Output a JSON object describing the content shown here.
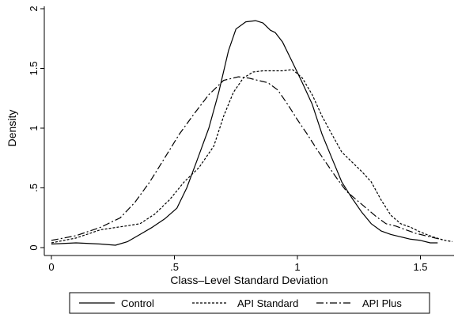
{
  "chart_data": {
    "type": "line",
    "title": "",
    "xlabel": "Class–Level Standard Deviation",
    "ylabel": "Density",
    "xlim": [
      0,
      1.65
    ],
    "ylim": [
      0,
      2.05
    ],
    "grid": false,
    "legend_position": "bottom",
    "x_ticks": [
      {
        "value": 0,
        "label": "0"
      },
      {
        "value": 0.5,
        "label": ".5"
      },
      {
        "value": 1,
        "label": "1"
      },
      {
        "value": 1.5,
        "label": "1.5"
      }
    ],
    "y_ticks": [
      {
        "value": 0,
        "label": "0"
      },
      {
        "value": 0.5,
        "label": ".5"
      },
      {
        "value": 1,
        "label": "1"
      },
      {
        "value": 1.5,
        "label": "1.5"
      },
      {
        "value": 2,
        "label": "2"
      }
    ],
    "series": [
      {
        "name": "Control",
        "style": "solid",
        "points": [
          [
            0.0,
            0.03
          ],
          [
            0.1,
            0.04
          ],
          [
            0.2,
            0.03
          ],
          [
            0.26,
            0.02
          ],
          [
            0.31,
            0.05
          ],
          [
            0.36,
            0.11
          ],
          [
            0.41,
            0.17
          ],
          [
            0.46,
            0.24
          ],
          [
            0.51,
            0.33
          ],
          [
            0.55,
            0.5
          ],
          [
            0.59,
            0.72
          ],
          [
            0.64,
            1.0
          ],
          [
            0.68,
            1.3
          ],
          [
            0.72,
            1.65
          ],
          [
            0.75,
            1.83
          ],
          [
            0.79,
            1.89
          ],
          [
            0.83,
            1.9
          ],
          [
            0.86,
            1.88
          ],
          [
            0.89,
            1.82
          ],
          [
            0.91,
            1.8
          ],
          [
            0.94,
            1.72
          ],
          [
            0.98,
            1.55
          ],
          [
            1.02,
            1.38
          ],
          [
            1.06,
            1.2
          ],
          [
            1.1,
            0.95
          ],
          [
            1.14,
            0.75
          ],
          [
            1.18,
            0.55
          ],
          [
            1.22,
            0.42
          ],
          [
            1.26,
            0.3
          ],
          [
            1.3,
            0.2
          ],
          [
            1.34,
            0.14
          ],
          [
            1.38,
            0.11
          ],
          [
            1.42,
            0.09
          ],
          [
            1.46,
            0.07
          ],
          [
            1.5,
            0.06
          ],
          [
            1.54,
            0.04
          ],
          [
            1.57,
            0.04
          ]
        ]
      },
      {
        "name": "API Standard",
        "style": "dashed",
        "points": [
          [
            0.0,
            0.04
          ],
          [
            0.1,
            0.08
          ],
          [
            0.2,
            0.15
          ],
          [
            0.3,
            0.18
          ],
          [
            0.36,
            0.2
          ],
          [
            0.42,
            0.28
          ],
          [
            0.48,
            0.4
          ],
          [
            0.54,
            0.55
          ],
          [
            0.6,
            0.67
          ],
          [
            0.66,
            0.85
          ],
          [
            0.7,
            1.1
          ],
          [
            0.74,
            1.3
          ],
          [
            0.78,
            1.42
          ],
          [
            0.82,
            1.47
          ],
          [
            0.86,
            1.48
          ],
          [
            0.9,
            1.48
          ],
          [
            0.94,
            1.48
          ],
          [
            0.98,
            1.49
          ],
          [
            1.02,
            1.42
          ],
          [
            1.06,
            1.28
          ],
          [
            1.1,
            1.1
          ],
          [
            1.14,
            0.95
          ],
          [
            1.18,
            0.8
          ],
          [
            1.22,
            0.72
          ],
          [
            1.26,
            0.64
          ],
          [
            1.3,
            0.55
          ],
          [
            1.34,
            0.4
          ],
          [
            1.38,
            0.27
          ],
          [
            1.42,
            0.2
          ],
          [
            1.46,
            0.17
          ],
          [
            1.5,
            0.13
          ],
          [
            1.55,
            0.09
          ],
          [
            1.6,
            0.06
          ],
          [
            1.63,
            0.05
          ]
        ]
      },
      {
        "name": "API Plus",
        "style": "dashdot",
        "points": [
          [
            0.0,
            0.06
          ],
          [
            0.1,
            0.1
          ],
          [
            0.2,
            0.17
          ],
          [
            0.28,
            0.25
          ],
          [
            0.34,
            0.38
          ],
          [
            0.4,
            0.55
          ],
          [
            0.46,
            0.75
          ],
          [
            0.52,
            0.95
          ],
          [
            0.58,
            1.12
          ],
          [
            0.64,
            1.28
          ],
          [
            0.7,
            1.4
          ],
          [
            0.76,
            1.43
          ],
          [
            0.8,
            1.42
          ],
          [
            0.84,
            1.4
          ],
          [
            0.88,
            1.38
          ],
          [
            0.92,
            1.32
          ],
          [
            0.96,
            1.2
          ],
          [
            1.0,
            1.07
          ],
          [
            1.04,
            0.95
          ],
          [
            1.08,
            0.82
          ],
          [
            1.12,
            0.7
          ],
          [
            1.16,
            0.58
          ],
          [
            1.2,
            0.47
          ],
          [
            1.24,
            0.4
          ],
          [
            1.28,
            0.33
          ],
          [
            1.32,
            0.26
          ],
          [
            1.36,
            0.2
          ],
          [
            1.4,
            0.18
          ],
          [
            1.44,
            0.15
          ],
          [
            1.48,
            0.12
          ],
          [
            1.52,
            0.1
          ],
          [
            1.56,
            0.08
          ],
          [
            1.6,
            0.06
          ]
        ]
      }
    ]
  }
}
